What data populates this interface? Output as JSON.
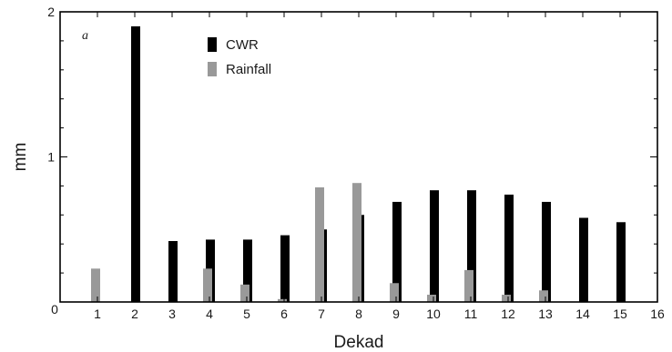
{
  "chart_data": {
    "type": "bar",
    "panel_label": "a",
    "xlabel": "Dekad",
    "ylabel": "mm",
    "x_ticks": [
      0,
      1,
      2,
      3,
      4,
      5,
      6,
      7,
      8,
      9,
      10,
      11,
      12,
      13,
      14,
      15,
      16
    ],
    "y_ticks": [
      0,
      1,
      2
    ],
    "xlim": [
      0,
      16
    ],
    "ylim": [
      0,
      2
    ],
    "grid": false,
    "legend_position": "top-left",
    "categories": [
      1,
      2,
      3,
      4,
      5,
      6,
      7,
      8,
      9,
      10,
      11,
      12,
      13,
      14,
      15
    ],
    "series": [
      {
        "name": "CWR",
        "color": "#000000",
        "values": [
          0,
          1.9,
          0.42,
          0.43,
          0.43,
          0.46,
          0.5,
          0.6,
          0.69,
          0.77,
          0.77,
          0.74,
          0.69,
          0.58,
          0.55
        ]
      },
      {
        "name": "Rainfall",
        "color": "#999999",
        "values": [
          0.23,
          0,
          0,
          0.23,
          0.12,
          0.02,
          0.79,
          0.82,
          0.13,
          0.05,
          0.22,
          0.05,
          0.08,
          0,
          0
        ]
      }
    ]
  }
}
